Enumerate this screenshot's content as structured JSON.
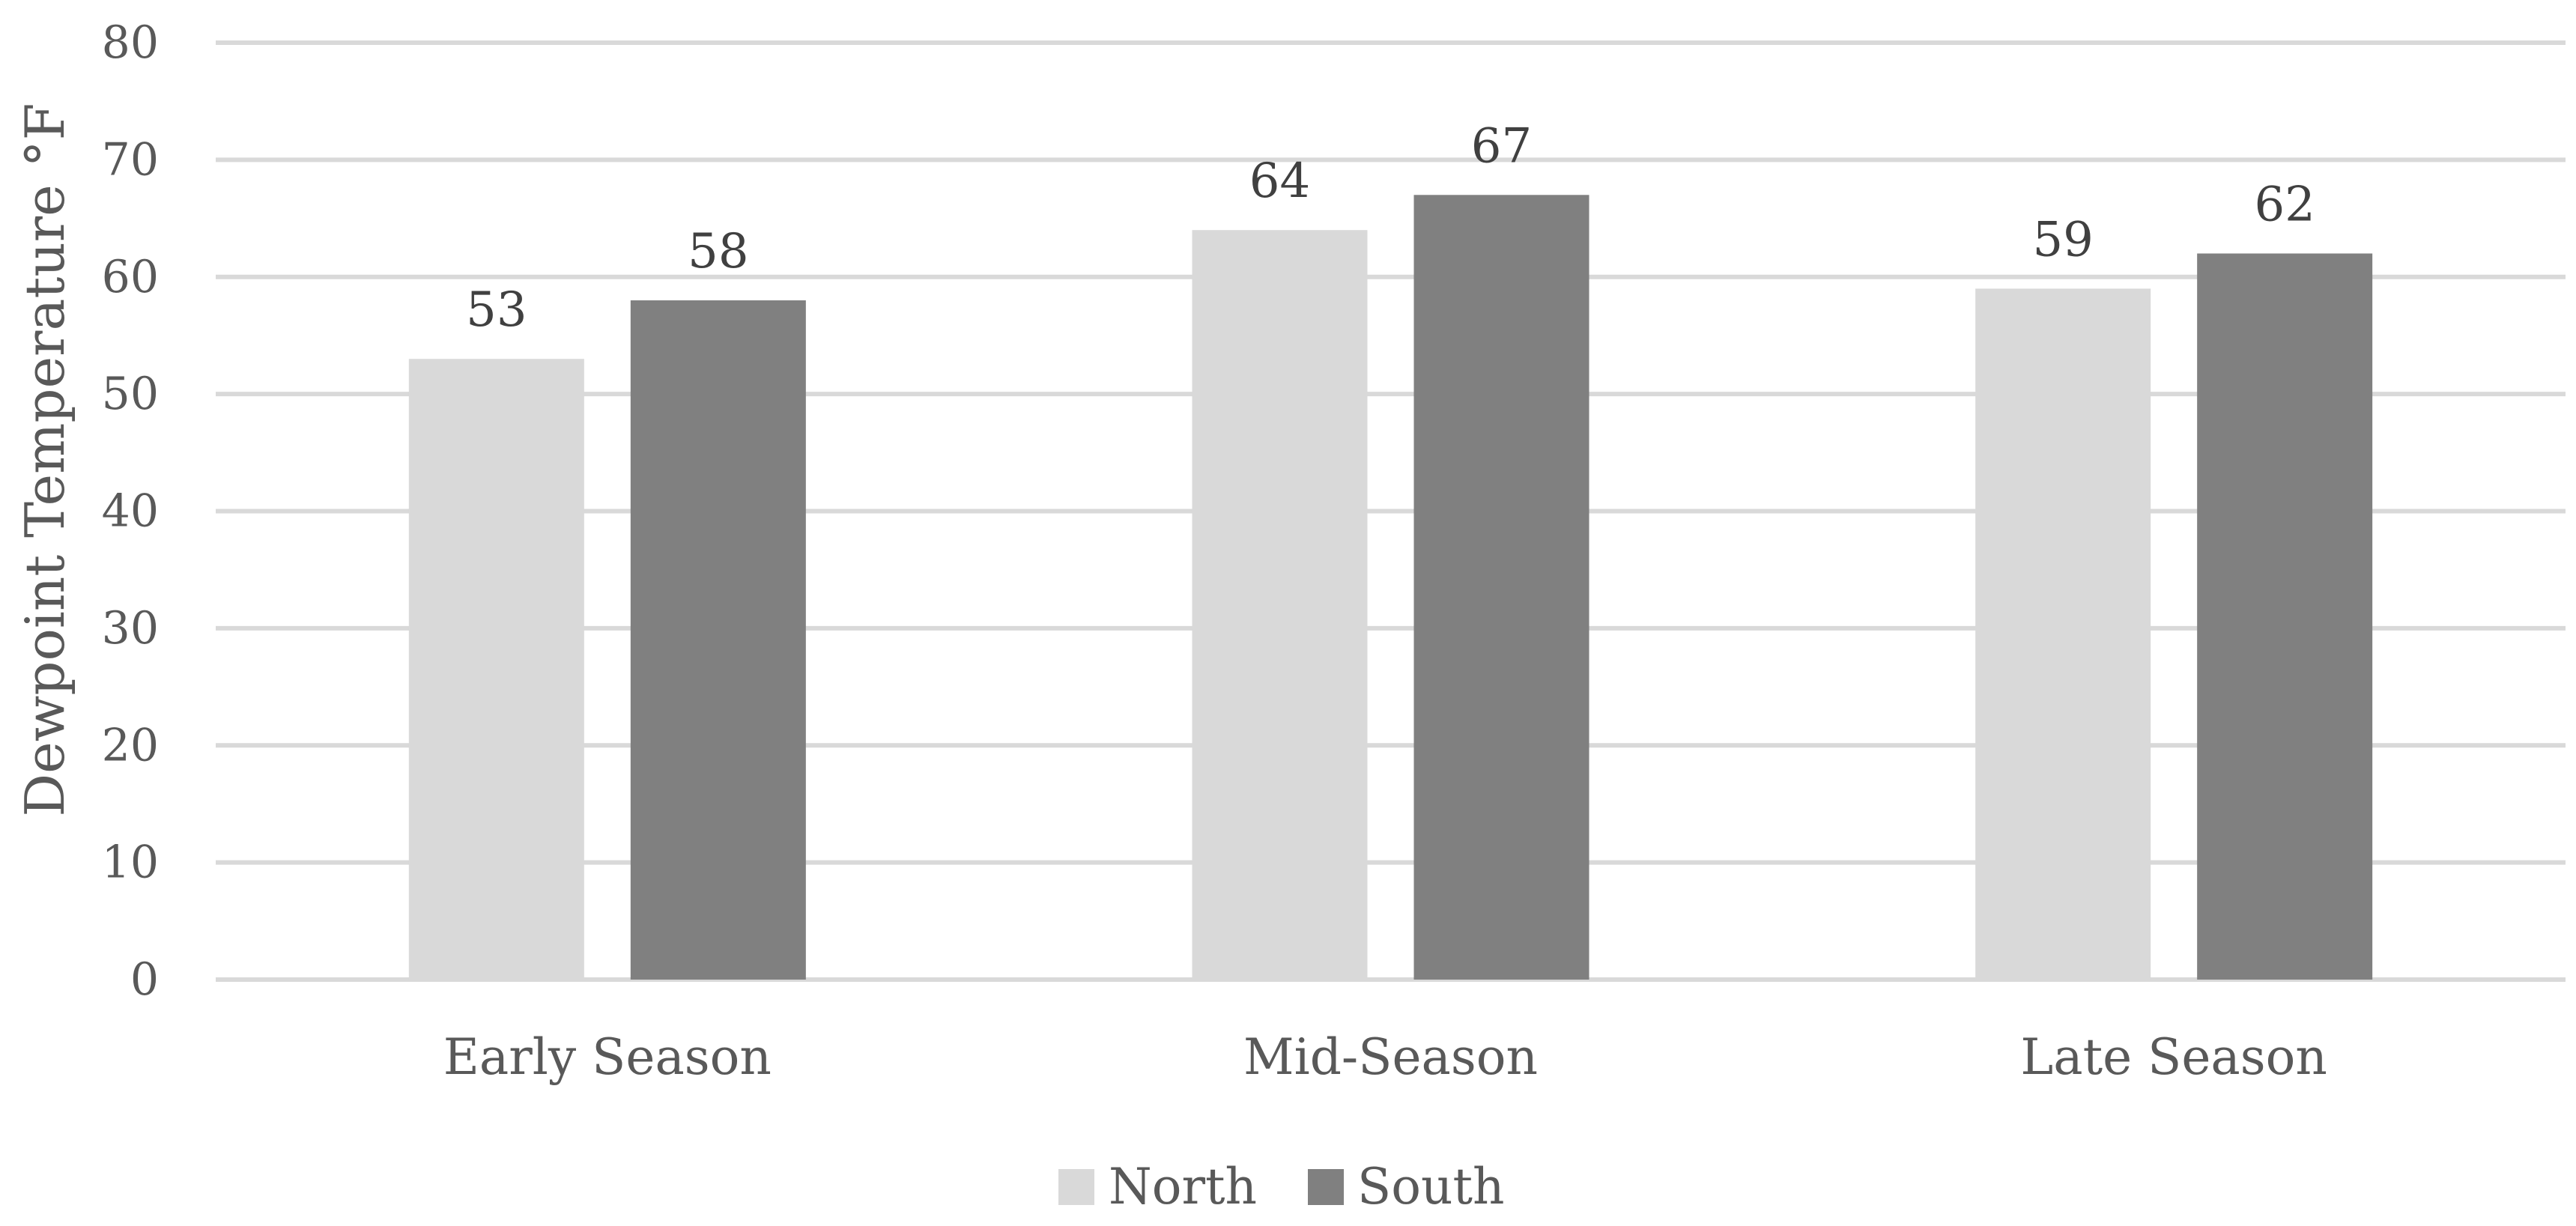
{
  "chart_data": {
    "type": "bar",
    "categories": [
      "Early Season",
      "Mid-Season",
      "Late Season"
    ],
    "series": [
      {
        "name": "North",
        "values": [
          53,
          64,
          59
        ],
        "color": "#d9d9d9"
      },
      {
        "name": "South",
        "values": [
          58,
          67,
          62
        ],
        "color": "#808080"
      }
    ],
    "ylabel": "Dewpoint Temperature °F",
    "xlabel": "",
    "ylim": [
      0,
      80
    ],
    "yticks": [
      0,
      10,
      20,
      30,
      40,
      50,
      60,
      70,
      80
    ],
    "grid": true,
    "gridline_color": "#d9d9d9",
    "legend_position": "bottom",
    "data_labels": true
  }
}
